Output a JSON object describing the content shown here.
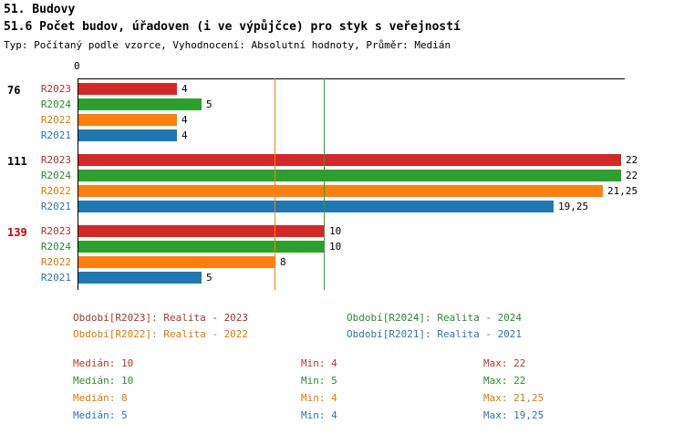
{
  "header": {
    "title": "51. Budovy",
    "subtitle": "51.6 Počet budov, úřadoven (i ve výpůjčce) pro styk s veřejností",
    "meta": "Typ: Počítaný podle vzorce, Vyhodnocení: Absolutní hodnoty, Průměr: Medián"
  },
  "chart_data": {
    "type": "bar",
    "orientation": "horizontal",
    "xmax": 22,
    "xlim": [
      0,
      22
    ],
    "axis_origin_label": "0",
    "series": [
      {
        "id": "R2023",
        "name": "Realita - 2023",
        "bar_color": "#d62728",
        "text_color": "#a8372e"
      },
      {
        "id": "R2024",
        "name": "Realita - 2024",
        "bar_color": "#2ca02c",
        "text_color": "#2e8b2e"
      },
      {
        "id": "R2022",
        "name": "Realita - 2022",
        "bar_color": "#ff7f0e",
        "text_color": "#e07b00"
      },
      {
        "id": "R2021",
        "name": "Realita - 2021",
        "bar_color": "#1f77b4",
        "text_color": "#2e75b6"
      }
    ],
    "groups": [
      {
        "label": "76",
        "label_color": "#000000",
        "values": [
          {
            "series": "R2023",
            "value": 4,
            "display": "4"
          },
          {
            "series": "R2024",
            "value": 5,
            "display": "5"
          },
          {
            "series": "R2022",
            "value": 4,
            "display": "4"
          },
          {
            "series": "R2021",
            "value": 4,
            "display": "4"
          }
        ]
      },
      {
        "label": "111",
        "label_color": "#000000",
        "values": [
          {
            "series": "R2023",
            "value": 22,
            "display": "22"
          },
          {
            "series": "R2024",
            "value": 22,
            "display": "22"
          },
          {
            "series": "R2022",
            "value": 21.25,
            "display": "21,25"
          },
          {
            "series": "R2021",
            "value": 19.25,
            "display": "19,25"
          }
        ]
      },
      {
        "label": "139",
        "label_color": "#cc0000",
        "values": [
          {
            "series": "R2023",
            "value": 10,
            "display": "10"
          },
          {
            "series": "R2024",
            "value": 10,
            "display": "10"
          },
          {
            "series": "R2022",
            "value": 8,
            "display": "8"
          },
          {
            "series": "R2021",
            "value": 5,
            "display": "5"
          }
        ]
      }
    ],
    "median_lines": [
      {
        "series": "R2022",
        "value": 8
      },
      {
        "series": "R2024",
        "value": 10
      }
    ]
  },
  "legend": [
    {
      "series": "R2023",
      "label": "Období[R2023]: Realita - 2023",
      "color": "#a8372e"
    },
    {
      "series": "R2024",
      "label": "Období[R2024]: Realita - 2024",
      "color": "#2e8b2e"
    },
    {
      "series": "R2022",
      "label": "Období[R2022]: Realita - 2022",
      "color": "#e07b00"
    },
    {
      "series": "R2021",
      "label": "Období[R2021]: Realita - 2021",
      "color": "#2e75b6"
    }
  ],
  "stats": {
    "labels": {
      "median": "Medián",
      "min": "Min",
      "max": "Max"
    },
    "rows": [
      {
        "series": "R2023",
        "color": "#c0362c",
        "median": "10",
        "min": "4",
        "max": "22"
      },
      {
        "series": "R2024",
        "color": "#2e8b2e",
        "median": "10",
        "min": "5",
        "max": "22"
      },
      {
        "series": "R2022",
        "color": "#e07b00",
        "median": "8",
        "min": "4",
        "max": "21,25"
      },
      {
        "series": "R2021",
        "color": "#2e75b6",
        "median": "5",
        "min": "4",
        "max": "19,25"
      }
    ]
  }
}
